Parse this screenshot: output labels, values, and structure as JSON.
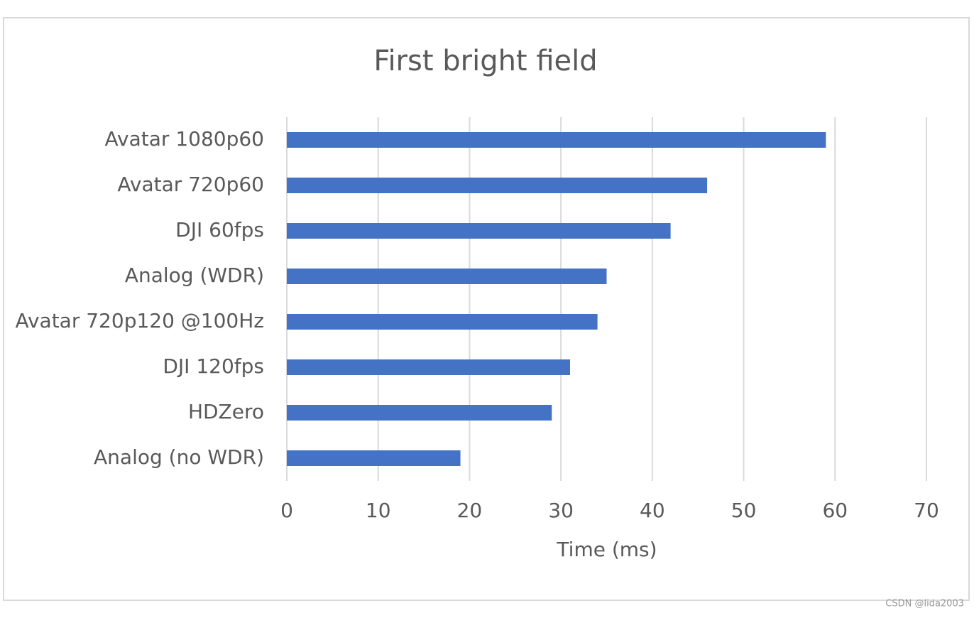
{
  "chart_data": {
    "type": "bar",
    "orientation": "horizontal",
    "title": "First bright field",
    "categories": [
      "Avatar 1080p60",
      "Avatar 720p60",
      "DJI 60fps",
      "Analog (WDR)",
      "Avatar 720p120 @100Hz",
      "DJI 120fps",
      "HDZero",
      "Analog (no WDR)"
    ],
    "values": [
      59,
      46,
      42,
      35,
      34,
      31,
      29,
      19
    ],
    "color": "#4472c4",
    "xlabel": "Time (ms)",
    "xlim": [
      0,
      70
    ],
    "xticks": [
      0,
      10,
      20,
      30,
      40,
      50,
      60,
      70
    ],
    "grid": true
  },
  "watermark": "CSDN @lida2003"
}
